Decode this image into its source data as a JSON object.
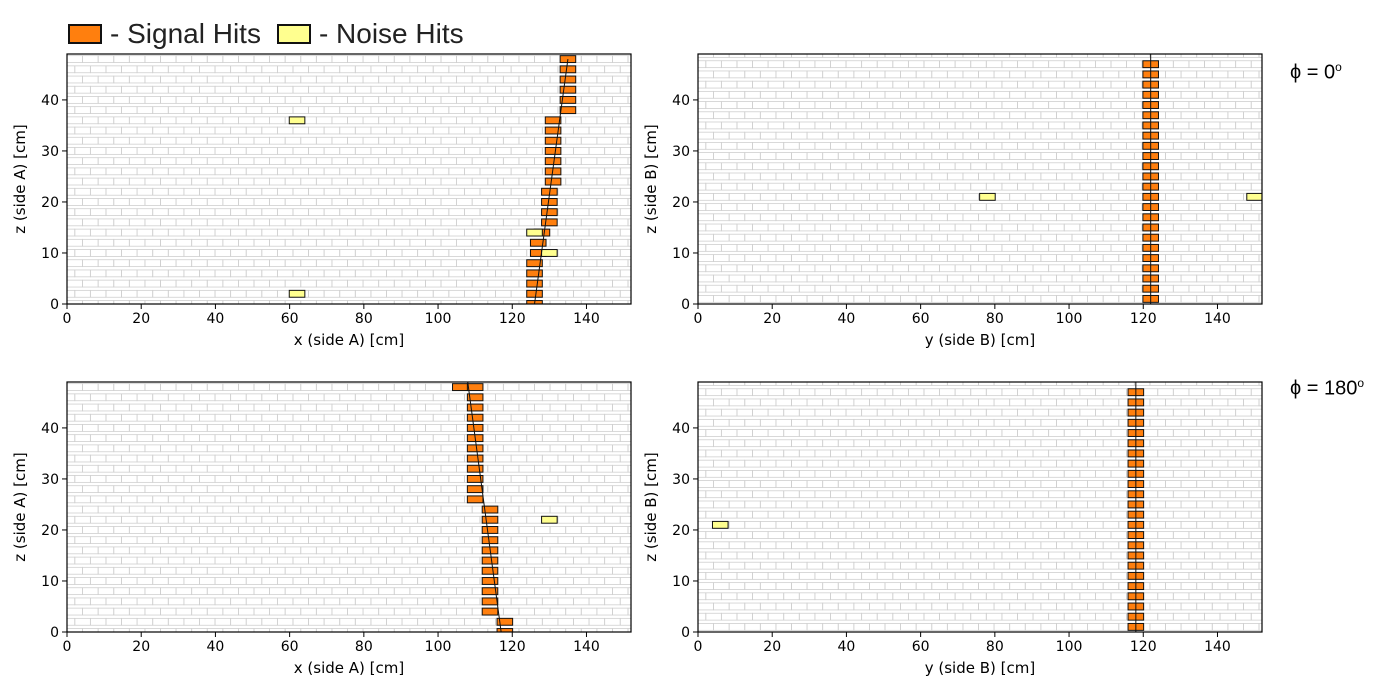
{
  "legend": {
    "signal_label": "- Signal Hits",
    "noise_label": "- Noise Hits",
    "signal_color": "#ff7f0e",
    "noise_color": "#ffff8f"
  },
  "angle_labels": [
    {
      "text": "ϕ = 0",
      "sup": "o"
    },
    {
      "text": "ϕ = 180",
      "sup": "o"
    }
  ],
  "chart_data": [
    {
      "type": "scatter",
      "panel": "top-left",
      "xlabel": "x (side A) [cm]",
      "ylabel": "z (side A) [cm]",
      "xlim": [
        0,
        152
      ],
      "ylim": [
        0,
        49
      ],
      "xticks": [
        0,
        20,
        40,
        60,
        80,
        100,
        120,
        140
      ],
      "yticks": [
        0,
        10,
        20,
        30,
        40
      ],
      "grid": "detector-bar-layers",
      "signal_hits": [
        [
          126,
          0
        ],
        [
          126,
          2
        ],
        [
          126,
          4
        ],
        [
          126,
          6
        ],
        [
          126,
          8
        ],
        [
          127,
          10
        ],
        [
          127,
          12
        ],
        [
          128,
          14
        ],
        [
          130,
          16
        ],
        [
          130,
          18
        ],
        [
          130,
          20
        ],
        [
          130,
          22
        ],
        [
          131,
          24
        ],
        [
          131,
          26
        ],
        [
          131,
          28
        ],
        [
          131,
          30
        ],
        [
          131,
          32
        ],
        [
          131,
          34
        ],
        [
          131,
          36
        ],
        [
          135,
          38
        ],
        [
          135,
          40
        ],
        [
          135,
          42
        ],
        [
          135,
          44
        ],
        [
          135,
          46
        ],
        [
          135,
          48
        ]
      ],
      "noise_hits": [
        [
          62,
          2
        ],
        [
          130,
          10
        ],
        [
          126,
          14
        ],
        [
          62,
          36
        ]
      ],
      "track": [
        [
          126,
          0
        ],
        [
          135,
          48
        ]
      ]
    },
    {
      "type": "scatter",
      "panel": "top-right",
      "xlabel": "y (side B) [cm]",
      "ylabel": "z (side B) [cm]",
      "xlim": [
        0,
        152
      ],
      "ylim": [
        0,
        49
      ],
      "xticks": [
        0,
        20,
        40,
        60,
        80,
        100,
        120,
        140
      ],
      "yticks": [
        0,
        10,
        20,
        30,
        40
      ],
      "grid": "detector-bar-layers",
      "signal_hits": [
        [
          122,
          1
        ],
        [
          122,
          3
        ],
        [
          122,
          5
        ],
        [
          122,
          7
        ],
        [
          122,
          9
        ],
        [
          122,
          11
        ],
        [
          122,
          13
        ],
        [
          122,
          15
        ],
        [
          122,
          17
        ],
        [
          122,
          19
        ],
        [
          122,
          21
        ],
        [
          122,
          23
        ],
        [
          122,
          25
        ],
        [
          122,
          27
        ],
        [
          122,
          29
        ],
        [
          122,
          31
        ],
        [
          122,
          33
        ],
        [
          122,
          35
        ],
        [
          122,
          37
        ],
        [
          122,
          39
        ],
        [
          122,
          41
        ],
        [
          122,
          43
        ],
        [
          122,
          45
        ],
        [
          122,
          47
        ]
      ],
      "noise_hits": [
        [
          78,
          21
        ],
        [
          150,
          21
        ]
      ],
      "track": [
        [
          122,
          0
        ],
        [
          122,
          49
        ]
      ]
    },
    {
      "type": "scatter",
      "panel": "bottom-left",
      "xlabel": "x (side A) [cm]",
      "ylabel": "z (side A) [cm]",
      "xlim": [
        0,
        152
      ],
      "ylim": [
        0,
        49
      ],
      "xticks": [
        0,
        20,
        40,
        60,
        80,
        100,
        120,
        140
      ],
      "yticks": [
        0,
        10,
        20,
        30,
        40
      ],
      "grid": "detector-bar-layers",
      "signal_hits": [
        [
          118,
          0
        ],
        [
          118,
          2
        ],
        [
          114,
          4
        ],
        [
          114,
          6
        ],
        [
          114,
          8
        ],
        [
          114,
          10
        ],
        [
          114,
          12
        ],
        [
          114,
          14
        ],
        [
          114,
          16
        ],
        [
          114,
          18
        ],
        [
          114,
          20
        ],
        [
          114,
          22
        ],
        [
          114,
          24
        ],
        [
          110,
          26
        ],
        [
          110,
          28
        ],
        [
          110,
          30
        ],
        [
          110,
          32
        ],
        [
          110,
          34
        ],
        [
          110,
          36
        ],
        [
          110,
          38
        ],
        [
          110,
          40
        ],
        [
          110,
          42
        ],
        [
          110,
          44
        ],
        [
          110,
          46
        ],
        [
          106,
          48
        ],
        [
          110,
          48
        ]
      ],
      "noise_hits": [
        [
          130,
          22
        ]
      ],
      "track": [
        [
          117,
          0
        ],
        [
          108,
          49
        ]
      ]
    },
    {
      "type": "scatter",
      "panel": "bottom-right",
      "xlabel": "y (side B) [cm]",
      "ylabel": "z (side B) [cm]",
      "xlim": [
        0,
        152
      ],
      "ylim": [
        0,
        49
      ],
      "xticks": [
        0,
        20,
        40,
        60,
        80,
        100,
        120,
        140
      ],
      "yticks": [
        0,
        10,
        20,
        30,
        40
      ],
      "grid": "detector-bar-layers",
      "signal_hits": [
        [
          118,
          1
        ],
        [
          118,
          3
        ],
        [
          118,
          5
        ],
        [
          118,
          7
        ],
        [
          118,
          9
        ],
        [
          118,
          11
        ],
        [
          118,
          13
        ],
        [
          118,
          15
        ],
        [
          118,
          17
        ],
        [
          118,
          19
        ],
        [
          118,
          21
        ],
        [
          118,
          23
        ],
        [
          118,
          25
        ],
        [
          118,
          27
        ],
        [
          118,
          29
        ],
        [
          118,
          31
        ],
        [
          118,
          33
        ],
        [
          118,
          35
        ],
        [
          118,
          37
        ],
        [
          118,
          39
        ],
        [
          118,
          41
        ],
        [
          118,
          43
        ],
        [
          118,
          45
        ],
        [
          118,
          47
        ]
      ],
      "noise_hits": [
        [
          6,
          21
        ]
      ],
      "track": [
        [
          118,
          0
        ],
        [
          118,
          49
        ]
      ]
    }
  ]
}
